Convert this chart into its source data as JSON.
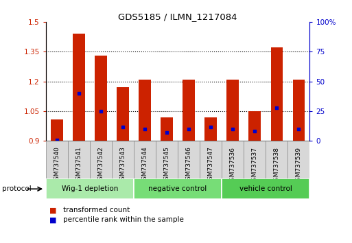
{
  "title": "GDS5185 / ILMN_1217084",
  "samples": [
    "GSM737540",
    "GSM737541",
    "GSM737542",
    "GSM737543",
    "GSM737544",
    "GSM737545",
    "GSM737546",
    "GSM737547",
    "GSM737536",
    "GSM737537",
    "GSM737538",
    "GSM737539"
  ],
  "transformed_count": [
    1.01,
    1.44,
    1.33,
    1.17,
    1.21,
    1.02,
    1.21,
    1.02,
    1.21,
    1.05,
    1.37,
    1.21
  ],
  "percentile_rank": [
    1,
    40,
    25,
    12,
    10,
    7,
    10,
    12,
    10,
    8,
    28,
    10
  ],
  "groups": [
    {
      "label": "Wig-1 depletion",
      "start": 0,
      "end": 4,
      "color": "#aaeaaa"
    },
    {
      "label": "negative control",
      "start": 4,
      "end": 8,
      "color": "#77dd77"
    },
    {
      "label": "vehicle control",
      "start": 8,
      "end": 12,
      "color": "#55cc55"
    }
  ],
  "ylim_left": [
    0.9,
    1.5
  ],
  "ylim_right": [
    0,
    100
  ],
  "yticks_left": [
    0.9,
    1.05,
    1.2,
    1.35,
    1.5
  ],
  "yticks_right": [
    0,
    25,
    50,
    75,
    100
  ],
  "bar_color": "#cc2200",
  "percentile_color": "#0000cc",
  "background_color": "#ffffff",
  "label_transformed": "transformed count",
  "label_percentile": "percentile rank within the sample",
  "cell_color": "#d8d8d8",
  "cell_border": "#888888"
}
